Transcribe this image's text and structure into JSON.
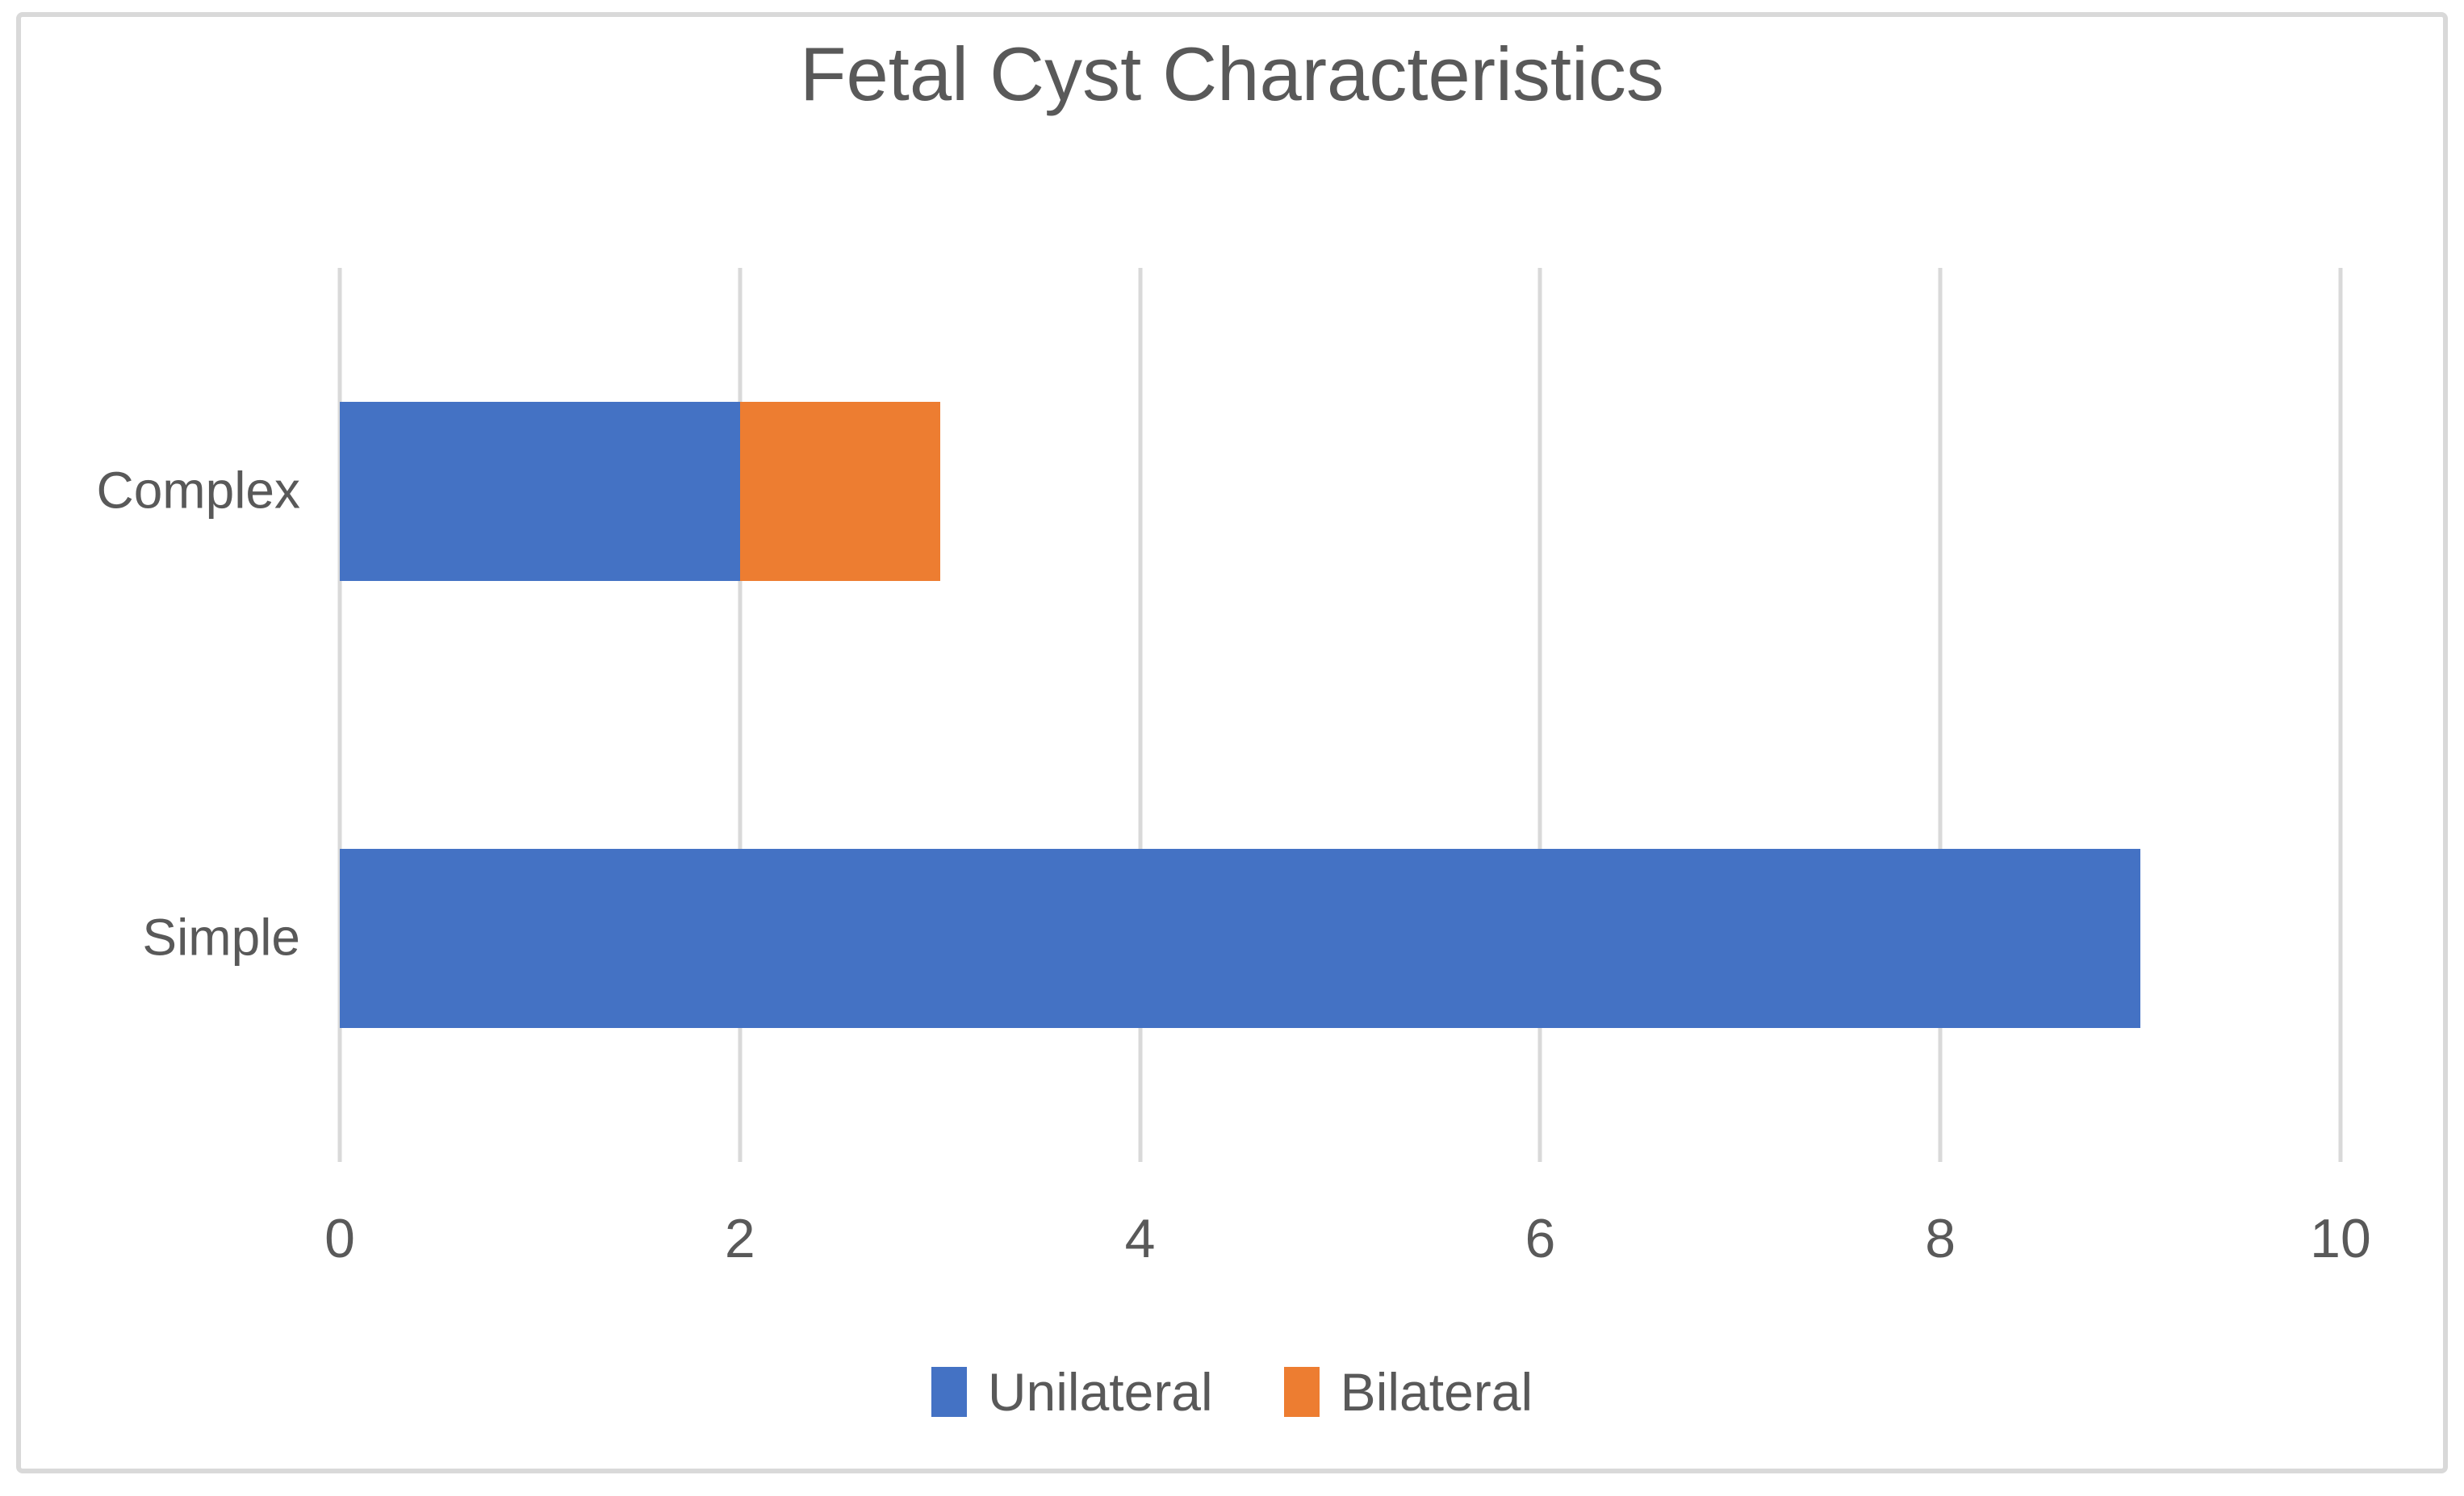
{
  "figure": {
    "title": "Fetal Cyst Characteristics"
  },
  "chart_data": {
    "type": "bar",
    "orientation": "horizontal",
    "stacked": true,
    "title": "Fetal Cyst Characteristics",
    "categories_top_to_bottom": [
      "Complex",
      "Simple"
    ],
    "series": [
      {
        "name": "Unilateral",
        "color": "#4472C4",
        "values_by_category": [
          2,
          9
        ]
      },
      {
        "name": "Bilateral",
        "color": "#ED7D31",
        "values_by_category": [
          1,
          0
        ]
      }
    ],
    "xlim": [
      0,
      10
    ],
    "x_ticks": [
      0,
      2,
      4,
      6,
      8,
      10
    ],
    "grid": "vertical-only",
    "legend_position": "bottom",
    "styles": {
      "gridline_color": "#D9D9D9",
      "border_color": "#D9D9D9",
      "text_color": "#595959",
      "background_color": "#FFFFFF"
    }
  }
}
